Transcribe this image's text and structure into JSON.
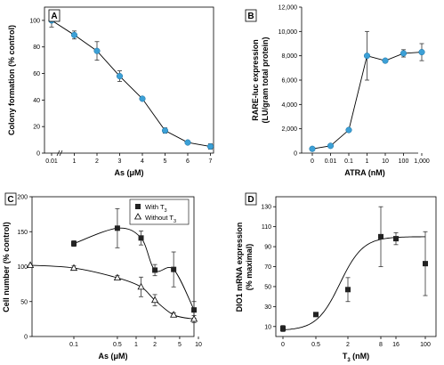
{
  "chart_data": [
    {
      "panel": "A",
      "type": "line",
      "xlabel": "As (μM)",
      "ylabel": "Colony formation (% control)",
      "x_tick_labels": [
        "0.01",
        "1",
        "2",
        "3",
        "4",
        "5",
        "6",
        "7"
      ],
      "y_ticks": [
        0,
        20,
        40,
        60,
        80,
        100
      ],
      "ylim": [
        0,
        110
      ],
      "marker_color": "#3ca0d6",
      "series": [
        {
          "x": [
            "0.01",
            "1",
            "2",
            "3",
            "4",
            "5",
            "6",
            "7"
          ],
          "y": [
            100,
            89,
            77,
            58,
            41,
            17,
            8,
            5
          ],
          "err": [
            5,
            3,
            7,
            4,
            1,
            2,
            1,
            2
          ]
        }
      ]
    },
    {
      "panel": "B",
      "type": "line",
      "xlabel": "ATRA (nM)",
      "ylabel": "RARE-luc expression (LU/gram total protein)",
      "x_tick_labels": [
        "0",
        "0.01",
        "0.1",
        "1",
        "10",
        "100",
        "1,000"
      ],
      "y_tick_labels": [
        "0",
        "2,000",
        "4,000",
        "6,000",
        "8,000",
        "10,000",
        "12,000"
      ],
      "ylim": [
        0,
        12000
      ],
      "marker_color": "#3ca0d6",
      "series": [
        {
          "x": [
            "0",
            "0.01",
            "0.1",
            "1",
            "10",
            "100",
            "1,000"
          ],
          "y": [
            350,
            600,
            1900,
            8000,
            7600,
            8200,
            8300
          ],
          "err": [
            150,
            100,
            150,
            2000,
            150,
            300,
            700
          ]
        }
      ]
    },
    {
      "panel": "C",
      "type": "line",
      "xlabel": "As (μM)",
      "ylabel": "Cell number (% control)",
      "x_tick_labels": [
        "0.1",
        "0.5",
        "1",
        "2",
        "5",
        "10"
      ],
      "y_ticks": [
        0,
        50,
        100,
        150,
        200
      ],
      "ylim": [
        0,
        200
      ],
      "legend": [
        "With T3",
        "Without T3"
      ],
      "legend_position": "top-right",
      "series": [
        {
          "name": "With T3",
          "marker": "filled-square",
          "x": [
            0.1,
            0.5,
            1.2,
            2,
            4,
            8.5
          ],
          "y": [
            133,
            155,
            141,
            95,
            96,
            38
          ],
          "err": [
            4,
            28,
            10,
            8,
            25,
            12
          ]
        },
        {
          "name": "Without T3",
          "marker": "open-triangle",
          "x": [
            0.02,
            0.1,
            0.5,
            1.2,
            2,
            4,
            8.5
          ],
          "y": [
            102,
            98,
            84,
            71,
            52,
            31,
            25
          ],
          "err": [
            0,
            3,
            3,
            14,
            8,
            3,
            5
          ]
        }
      ]
    },
    {
      "panel": "D",
      "type": "line",
      "xlabel": "T3 (nM)",
      "ylabel": "DIO1 mRNA expression (% maximal)",
      "x_tick_labels": [
        "0",
        "0.5",
        "2",
        "8",
        "16",
        "100"
      ],
      "y_ticks": [
        10,
        30,
        50,
        70,
        90,
        110,
        130
      ],
      "ylim": [
        0,
        140
      ],
      "series": [
        {
          "marker": "filled-square",
          "x": [
            "0",
            "0.5",
            "2",
            "8",
            "16",
            "100"
          ],
          "y": [
            8,
            22,
            47,
            100,
            98,
            73
          ],
          "err": [
            3,
            2,
            12,
            30,
            6,
            32
          ]
        }
      ],
      "fit_curve": "sigmoid"
    }
  ]
}
